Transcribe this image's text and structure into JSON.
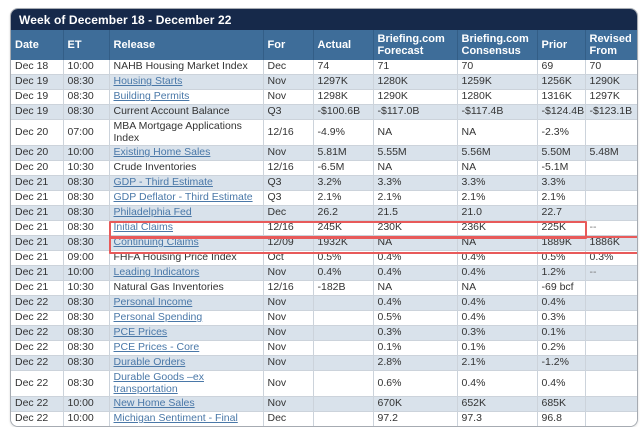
{
  "title": "Week of December 18 - December 22",
  "columns": [
    {
      "id": "date",
      "label": "Date"
    },
    {
      "id": "et",
      "label": "ET"
    },
    {
      "id": "release",
      "label": "Release"
    },
    {
      "id": "for",
      "label": "For"
    },
    {
      "id": "actual",
      "label": "Actual"
    },
    {
      "id": "forecast",
      "label": "Briefing.com Forecast"
    },
    {
      "id": "consensus",
      "label": "Briefing.com Consensus"
    },
    {
      "id": "prior",
      "label": "Prior"
    },
    {
      "id": "revised_from",
      "label": "Revised From"
    }
  ],
  "rows": [
    {
      "date": "Dec 18",
      "et": "10:00",
      "release": "NAHB Housing Market Index",
      "is_link": false,
      "for": "Dec",
      "actual": "74",
      "forecast": "71",
      "consensus": "70",
      "prior": "69",
      "revised_from": "70",
      "shaded": false
    },
    {
      "date": "Dec 19",
      "et": "08:30",
      "release": "Housing Starts",
      "is_link": true,
      "for": "Nov",
      "actual": "1297K",
      "forecast": "1280K",
      "consensus": "1259K",
      "prior": "1256K",
      "revised_from": "1290K",
      "shaded": true
    },
    {
      "date": "Dec 19",
      "et": "08:30",
      "release": "Building Permits",
      "is_link": true,
      "for": "Nov",
      "actual": "1298K",
      "forecast": "1290K",
      "consensus": "1280K",
      "prior": "1316K",
      "revised_from": "1297K",
      "shaded": false
    },
    {
      "date": "Dec 19",
      "et": "08:30",
      "release": "Current Account Balance",
      "is_link": false,
      "for": "Q3",
      "actual": "-$100.6B",
      "forecast": "-$117.0B",
      "consensus": "-$117.4B",
      "prior": "-$124.4B",
      "revised_from": "-$123.1B",
      "shaded": true
    },
    {
      "date": "Dec 20",
      "et": "07:00",
      "release": "MBA Mortgage Applications Index",
      "is_link": false,
      "for": "12/16",
      "actual": "-4.9%",
      "forecast": "NA",
      "consensus": "NA",
      "prior": "-2.3%",
      "revised_from": "",
      "shaded": false
    },
    {
      "date": "Dec 20",
      "et": "10:00",
      "release": "Existing Home Sales",
      "is_link": true,
      "for": "Nov",
      "actual": "5.81M",
      "forecast": "5.55M",
      "consensus": "5.56M",
      "prior": "5.50M",
      "revised_from": "5.48M",
      "shaded": true
    },
    {
      "date": "Dec 20",
      "et": "10:30",
      "release": "Crude Inventories",
      "is_link": false,
      "for": "12/16",
      "actual": "-6.5M",
      "forecast": "NA",
      "consensus": "NA",
      "prior": "-5.1M",
      "revised_from": "",
      "shaded": false
    },
    {
      "date": "Dec 21",
      "et": "08:30",
      "release": "GDP - Third Estimate",
      "is_link": true,
      "for": "Q3",
      "actual": "3.2%",
      "forecast": "3.3%",
      "consensus": "3.3%",
      "prior": "3.3%",
      "revised_from": "",
      "shaded": true
    },
    {
      "date": "Dec 21",
      "et": "08:30",
      "release": "GDP Deflator - Third Estimate",
      "is_link": true,
      "for": "Q3",
      "actual": "2.1%",
      "forecast": "2.1%",
      "consensus": "2.1%",
      "prior": "2.1%",
      "revised_from": "",
      "shaded": false
    },
    {
      "date": "Dec 21",
      "et": "08:30",
      "release": "Philadelphia Fed",
      "is_link": true,
      "for": "Dec",
      "actual": "26.2",
      "forecast": "21.5",
      "consensus": "21.0",
      "prior": "22.7",
      "revised_from": "",
      "shaded": true
    },
    {
      "date": "Dec 21",
      "et": "08:30",
      "release": "Initial Claims",
      "is_link": true,
      "for": "12/16",
      "actual": "245K",
      "forecast": "230K",
      "consensus": "236K",
      "prior": "225K",
      "revised_from": "--",
      "shaded": false
    },
    {
      "date": "Dec 21",
      "et": "08:30",
      "release": "Continuing Claims",
      "is_link": true,
      "for": "12/09",
      "actual": "1932K",
      "forecast": "NA",
      "consensus": "NA",
      "prior": "1889K",
      "revised_from": "1886K",
      "shaded": true
    },
    {
      "date": "Dec 21",
      "et": "09:00",
      "release": "FHFA Housing Price Index",
      "is_link": false,
      "for": "Oct",
      "actual": "0.5%",
      "forecast": "0.4%",
      "consensus": "0.4%",
      "prior": "0.5%",
      "revised_from": "0.3%",
      "shaded": false
    },
    {
      "date": "Dec 21",
      "et": "10:00",
      "release": "Leading Indicators",
      "is_link": true,
      "for": "Nov",
      "actual": "0.4%",
      "forecast": "0.4%",
      "consensus": "0.4%",
      "prior": "1.2%",
      "revised_from": "--",
      "shaded": true
    },
    {
      "date": "Dec 21",
      "et": "10:30",
      "release": "Natural Gas Inventories",
      "is_link": false,
      "for": "12/16",
      "actual": "-182B",
      "forecast": "NA",
      "consensus": "NA",
      "prior": "-69 bcf",
      "revised_from": "",
      "shaded": false
    },
    {
      "date": "Dec 22",
      "et": "08:30",
      "release": "Personal Income",
      "is_link": true,
      "for": "Nov",
      "actual": "",
      "forecast": "0.4%",
      "consensus": "0.4%",
      "prior": "0.4%",
      "revised_from": "",
      "shaded": true
    },
    {
      "date": "Dec 22",
      "et": "08:30",
      "release": "Personal Spending",
      "is_link": true,
      "for": "Nov",
      "actual": "",
      "forecast": "0.5%",
      "consensus": "0.4%",
      "prior": "0.3%",
      "revised_from": "",
      "shaded": false
    },
    {
      "date": "Dec 22",
      "et": "08:30",
      "release": "PCE Prices",
      "is_link": true,
      "for": "Nov",
      "actual": "",
      "forecast": "0.3%",
      "consensus": "0.3%",
      "prior": "0.1%",
      "revised_from": "",
      "shaded": true
    },
    {
      "date": "Dec 22",
      "et": "08:30",
      "release": "PCE Prices - Core",
      "is_link": true,
      "for": "Nov",
      "actual": "",
      "forecast": "0.1%",
      "consensus": "0.1%",
      "prior": "0.2%",
      "revised_from": "",
      "shaded": false
    },
    {
      "date": "Dec 22",
      "et": "08:30",
      "release": "Durable Orders",
      "is_link": true,
      "for": "Nov",
      "actual": "",
      "forecast": "2.8%",
      "consensus": "2.1%",
      "prior": "-1.2%",
      "revised_from": "",
      "shaded": true
    },
    {
      "date": "Dec 22",
      "et": "08:30",
      "release": "Durable Goods –ex transportation",
      "is_link": true,
      "for": "Nov",
      "actual": "",
      "forecast": "0.6%",
      "consensus": "0.4%",
      "prior": "0.4%",
      "revised_from": "",
      "shaded": false
    },
    {
      "date": "Dec 22",
      "et": "10:00",
      "release": "New Home Sales",
      "is_link": true,
      "for": "Nov",
      "actual": "",
      "forecast": "670K",
      "consensus": "652K",
      "prior": "685K",
      "revised_from": "",
      "shaded": true
    },
    {
      "date": "Dec 22",
      "et": "10:00",
      "release": "Michigan Sentiment - Final",
      "is_link": true,
      "for": "Dec",
      "actual": "",
      "forecast": "97.2",
      "consensus": "97.3",
      "prior": "96.8",
      "revised_from": "",
      "shaded": false
    }
  ],
  "highlight_boxes": [
    {
      "row_index": 10,
      "from_col": 2,
      "to_col": 7
    },
    {
      "row_index": 11,
      "from_col": 2,
      "to_col": 8
    }
  ],
  "colors": {
    "title_band": "#16294a",
    "header_band": "#3e6d99",
    "shaded_row": "#d9e2eb",
    "link": "#4a78a8",
    "highlight_box": "#e85a5a"
  }
}
